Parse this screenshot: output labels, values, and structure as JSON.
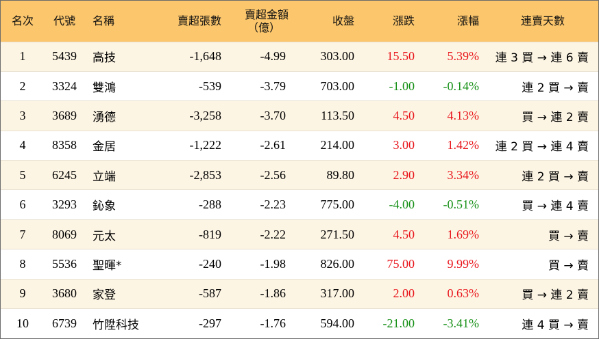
{
  "headers": {
    "rank": "名次",
    "code": "代號",
    "name": "名稱",
    "net_sell_lots": "賣超張數",
    "net_sell_amount": "賣超金額",
    "net_sell_amount_unit": "（億）",
    "close": "收盤",
    "change": "漲跌",
    "change_pct": "漲幅",
    "streak": "連賣天數"
  },
  "colors": {
    "header_bg": "#fbc66c",
    "row_alt_bg": "#fdf5e4",
    "up": "#e8141a",
    "down": "#148f14"
  },
  "rows": [
    {
      "rank": "1",
      "code": "5439",
      "name": "高技",
      "net_sell_lots": "-1,648",
      "net_sell_amount": "-4.99",
      "close": "303.00",
      "change": "15.50",
      "change_pct": "5.39%",
      "direction": "up",
      "streak": "連 3 買 → 連 6 賣"
    },
    {
      "rank": "2",
      "code": "3324",
      "name": "雙鴻",
      "net_sell_lots": "-539",
      "net_sell_amount": "-3.79",
      "close": "703.00",
      "change": "-1.00",
      "change_pct": "-0.14%",
      "direction": "down",
      "streak": "連 2 買 → 賣"
    },
    {
      "rank": "3",
      "code": "3689",
      "name": "湧德",
      "net_sell_lots": "-3,258",
      "net_sell_amount": "-3.70",
      "close": "113.50",
      "change": "4.50",
      "change_pct": "4.13%",
      "direction": "up",
      "streak": "買 → 連 2 賣"
    },
    {
      "rank": "4",
      "code": "8358",
      "name": "金居",
      "net_sell_lots": "-1,222",
      "net_sell_amount": "-2.61",
      "close": "214.00",
      "change": "3.00",
      "change_pct": "1.42%",
      "direction": "up",
      "streak": "連 2 買 → 連 4 賣"
    },
    {
      "rank": "5",
      "code": "6245",
      "name": "立端",
      "net_sell_lots": "-2,853",
      "net_sell_amount": "-2.56",
      "close": "89.80",
      "change": "2.90",
      "change_pct": "3.34%",
      "direction": "up",
      "streak": "連 2 買 → 賣"
    },
    {
      "rank": "6",
      "code": "3293",
      "name": "鈊象",
      "net_sell_lots": "-288",
      "net_sell_amount": "-2.23",
      "close": "775.00",
      "change": "-4.00",
      "change_pct": "-0.51%",
      "direction": "down",
      "streak": "買 → 連 4 賣"
    },
    {
      "rank": "7",
      "code": "8069",
      "name": "元太",
      "net_sell_lots": "-819",
      "net_sell_amount": "-2.22",
      "close": "271.50",
      "change": "4.50",
      "change_pct": "1.69%",
      "direction": "up",
      "streak": "買 → 賣"
    },
    {
      "rank": "8",
      "code": "5536",
      "name": "聖暉*",
      "net_sell_lots": "-240",
      "net_sell_amount": "-1.98",
      "close": "826.00",
      "change": "75.00",
      "change_pct": "9.99%",
      "direction": "up",
      "streak": "買 → 賣"
    },
    {
      "rank": "9",
      "code": "3680",
      "name": "家登",
      "net_sell_lots": "-587",
      "net_sell_amount": "-1.86",
      "close": "317.00",
      "change": "2.00",
      "change_pct": "0.63%",
      "direction": "up",
      "streak": "買 → 連 2 賣"
    },
    {
      "rank": "10",
      "code": "6739",
      "name": "竹陞科技",
      "net_sell_lots": "-297",
      "net_sell_amount": "-1.76",
      "close": "594.00",
      "change": "-21.00",
      "change_pct": "-3.41%",
      "direction": "down",
      "streak": "連 4 買 → 賣"
    }
  ]
}
